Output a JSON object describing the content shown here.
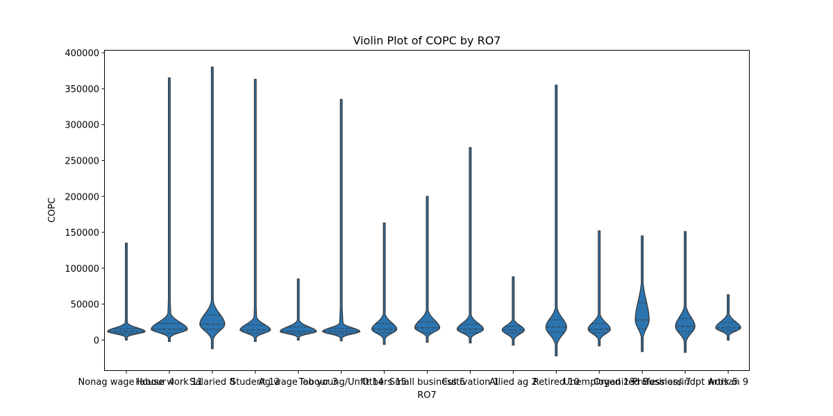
{
  "chart_data": {
    "type": "violin",
    "title": "Violin Plot of COPC by RO7",
    "xlabel": "RO7",
    "ylabel": "COPC",
    "ylim": [
      -43000,
      403000
    ],
    "yticks": [
      0,
      50000,
      100000,
      150000,
      200000,
      250000,
      300000,
      350000,
      400000
    ],
    "ytick_labels": [
      "0",
      "50000",
      "100000",
      "150000",
      "200000",
      "250000",
      "300000",
      "350000",
      "400000"
    ],
    "inner": "quartile",
    "color": "#2b74b0",
    "edge_color": "#3a3a3a",
    "grid": false,
    "categories": [
      {
        "label": "Nonag wage labour 4",
        "min": 0,
        "max": 135000,
        "q1": 9000,
        "median": 12000,
        "q3": 16000,
        "halfwidth": 27
      },
      {
        "label": "House work 11",
        "min": -2000,
        "max": 365000,
        "q1": 9500,
        "median": 15000,
        "q3": 23000,
        "halfwidth": 26
      },
      {
        "label": "Salaried 8",
        "min": -12000,
        "max": 380000,
        "q1": 15000,
        "median": 22000,
        "q3": 35000,
        "halfwidth": 18
      },
      {
        "label": "Student 12",
        "min": -2000,
        "max": 363000,
        "q1": 10000,
        "median": 14000,
        "q3": 21000,
        "halfwidth": 22
      },
      {
        "label": "Ag wage labour 3",
        "min": 0,
        "max": 85000,
        "q1": 9000,
        "median": 12000,
        "q3": 18000,
        "halfwidth": 26
      },
      {
        "label": "Too young/Unfit 14",
        "min": -1000,
        "max": 335000,
        "q1": 9000,
        "median": 12000,
        "q3": 16000,
        "halfwidth": 27
      },
      {
        "label": "Others 15",
        "min": -6000,
        "max": 163000,
        "q1": 10000,
        "median": 15000,
        "q3": 23000,
        "halfwidth": 18
      },
      {
        "label": "Small business 6",
        "min": -3000,
        "max": 200000,
        "q1": 10000,
        "median": 17000,
        "q3": 25000,
        "halfwidth": 18
      },
      {
        "label": "Cultivation 1",
        "min": -4000,
        "max": 268000,
        "q1": 10000,
        "median": 15000,
        "q3": 22000,
        "halfwidth": 19
      },
      {
        "label": "Allied ag 2",
        "min": -7000,
        "max": 88000,
        "q1": 10000,
        "median": 14000,
        "q3": 19000,
        "halfwidth": 16
      },
      {
        "label": "Retired 10",
        "min": -22000,
        "max": 355000,
        "q1": 11000,
        "median": 18000,
        "q3": 28000,
        "halfwidth": 15
      },
      {
        "label": "Unemployed 13",
        "min": -8000,
        "max": 152000,
        "q1": 10000,
        "median": 15000,
        "q3": 23000,
        "halfwidth": 16
      },
      {
        "label": "Organized Business 7",
        "min": -16000,
        "max": 145000,
        "q1": 16000,
        "median": 28000,
        "q3": 52000,
        "halfwidth": 10
      },
      {
        "label": "Profession/indpt work 5",
        "min": -17000,
        "max": 151000,
        "q1": 12000,
        "median": 19000,
        "q3": 30000,
        "halfwidth": 14
      },
      {
        "label": "Artisan 9",
        "min": 0,
        "max": 63000,
        "q1": 13000,
        "median": 17000,
        "q3": 25000,
        "halfwidth": 18
      }
    ]
  }
}
